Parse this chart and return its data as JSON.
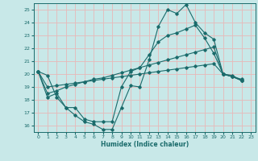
{
  "xlabel": "Humidex (Indice chaleur)",
  "ylabel": "",
  "bg_color": "#c8e8e8",
  "grid_color": "#e8b8b8",
  "line_color": "#1a6b6b",
  "xlim": [
    -0.5,
    23.5
  ],
  "ylim": [
    15.5,
    25.5
  ],
  "xticks": [
    0,
    1,
    2,
    3,
    4,
    5,
    6,
    7,
    8,
    9,
    10,
    11,
    12,
    13,
    14,
    15,
    16,
    17,
    18,
    19,
    20,
    21,
    22,
    23
  ],
  "yticks": [
    16,
    17,
    18,
    19,
    20,
    21,
    22,
    23,
    24,
    25
  ],
  "lines": [
    [
      20.2,
      19.9,
      18.2,
      17.4,
      16.8,
      16.3,
      16.1,
      15.7,
      15.7,
      17.4,
      19.1,
      19.0,
      21.1,
      23.7,
      25.0,
      24.7,
      25.4,
      24.0,
      23.2,
      22.7,
      20.0,
      19.8,
      19.6
    ],
    [
      20.2,
      18.2,
      18.5,
      17.4,
      17.4,
      16.5,
      16.3,
      16.3,
      16.3,
      19.0,
      20.2,
      20.5,
      21.5,
      22.5,
      23.0,
      23.2,
      23.5,
      23.8,
      22.8,
      21.6,
      20.0,
      19.8,
      19.5
    ],
    [
      20.2,
      18.5,
      18.7,
      19.0,
      19.2,
      19.4,
      19.6,
      19.7,
      19.9,
      20.1,
      20.3,
      20.5,
      20.7,
      20.9,
      21.1,
      21.3,
      21.5,
      21.7,
      21.9,
      22.1,
      20.0,
      19.8,
      19.5
    ],
    [
      20.2,
      19.0,
      19.1,
      19.2,
      19.3,
      19.4,
      19.5,
      19.6,
      19.7,
      19.8,
      19.9,
      20.0,
      20.1,
      20.2,
      20.3,
      20.4,
      20.5,
      20.6,
      20.7,
      20.8,
      20.0,
      19.9,
      19.5
    ]
  ],
  "line_x": [
    0,
    1,
    2,
    3,
    4,
    5,
    6,
    7,
    8,
    9,
    10,
    11,
    12,
    13,
    14,
    15,
    16,
    17,
    18,
    19,
    20,
    21,
    22
  ]
}
